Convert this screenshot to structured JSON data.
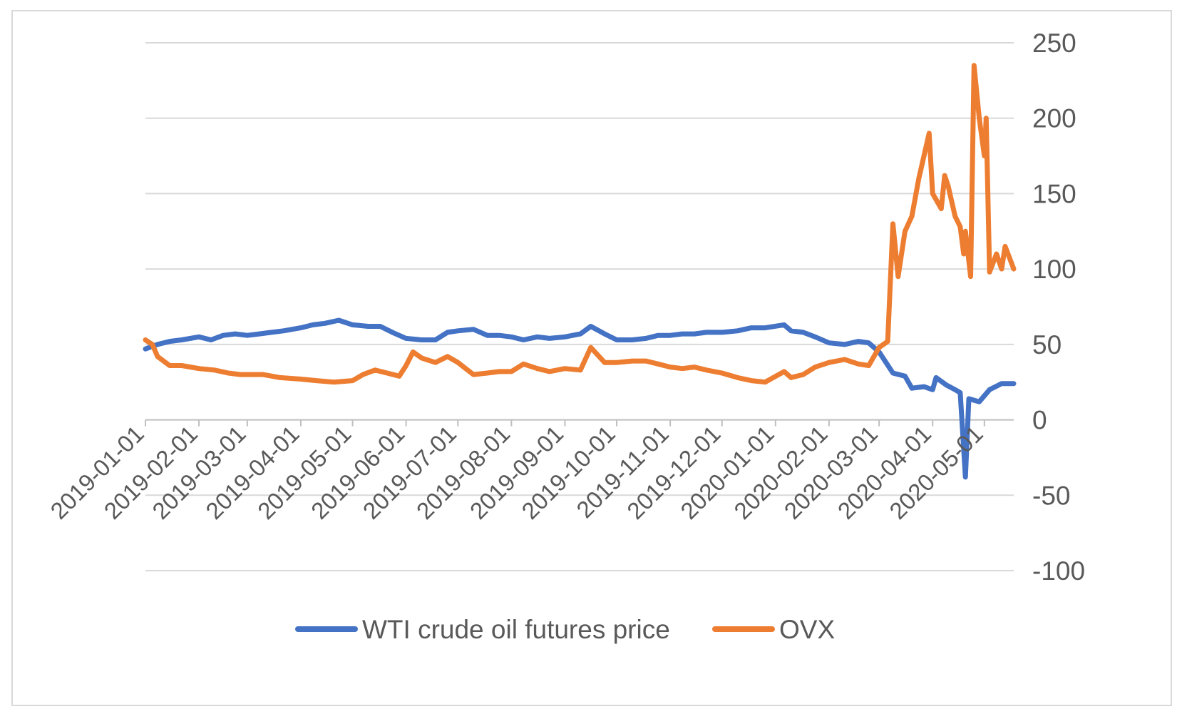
{
  "chart_data": {
    "type": "line",
    "title": "",
    "xlabel": "",
    "ylabel": "",
    "x_range": [
      "2019-01-01",
      "2020-05-18"
    ],
    "ylim": [
      -100,
      250
    ],
    "y_ticks": [
      250,
      200,
      150,
      100,
      50,
      0,
      -50,
      -100
    ],
    "y_axis_side": "right",
    "grid": "horizontal",
    "legend_position": "bottom",
    "x_ticks": [
      "2019-01-01",
      "2019-02-01",
      "2019-03-01",
      "2019-04-01",
      "2019-05-01",
      "2019-06-01",
      "2019-07-01",
      "2019-08-01",
      "2019-09-01",
      "2019-10-01",
      "2019-11-01",
      "2019-12-01",
      "2020-01-01",
      "2020-02-01",
      "2020-03-01",
      "2020-04-01",
      "2020-05-01"
    ],
    "series": [
      {
        "name": "WTI crude oil futures price",
        "color": "#4472c4",
        "points": [
          [
            "2019-01-01",
            47
          ],
          [
            "2019-01-08",
            50
          ],
          [
            "2019-01-15",
            52
          ],
          [
            "2019-01-22",
            53
          ],
          [
            "2019-02-01",
            55
          ],
          [
            "2019-02-08",
            53
          ],
          [
            "2019-02-15",
            56
          ],
          [
            "2019-02-22",
            57
          ],
          [
            "2019-03-01",
            56
          ],
          [
            "2019-03-08",
            57
          ],
          [
            "2019-03-15",
            58
          ],
          [
            "2019-03-22",
            59
          ],
          [
            "2019-04-01",
            61
          ],
          [
            "2019-04-08",
            63
          ],
          [
            "2019-04-15",
            64
          ],
          [
            "2019-04-23",
            66
          ],
          [
            "2019-05-01",
            63
          ],
          [
            "2019-05-10",
            62
          ],
          [
            "2019-05-17",
            62
          ],
          [
            "2019-05-24",
            58
          ],
          [
            "2019-06-01",
            54
          ],
          [
            "2019-06-10",
            53
          ],
          [
            "2019-06-18",
            53
          ],
          [
            "2019-06-25",
            58
          ],
          [
            "2019-07-01",
            59
          ],
          [
            "2019-07-10",
            60
          ],
          [
            "2019-07-18",
            56
          ],
          [
            "2019-07-25",
            56
          ],
          [
            "2019-08-01",
            55
          ],
          [
            "2019-08-08",
            53
          ],
          [
            "2019-08-16",
            55
          ],
          [
            "2019-08-23",
            54
          ],
          [
            "2019-09-01",
            55
          ],
          [
            "2019-09-10",
            57
          ],
          [
            "2019-09-16",
            62
          ],
          [
            "2019-09-24",
            57
          ],
          [
            "2019-10-01",
            53
          ],
          [
            "2019-10-10",
            53
          ],
          [
            "2019-10-18",
            54
          ],
          [
            "2019-10-25",
            56
          ],
          [
            "2019-11-01",
            56
          ],
          [
            "2019-11-08",
            57
          ],
          [
            "2019-11-15",
            57
          ],
          [
            "2019-11-22",
            58
          ],
          [
            "2019-12-01",
            58
          ],
          [
            "2019-12-10",
            59
          ],
          [
            "2019-12-18",
            61
          ],
          [
            "2019-12-26",
            61
          ],
          [
            "2020-01-06",
            63
          ],
          [
            "2020-01-10",
            59
          ],
          [
            "2020-01-17",
            58
          ],
          [
            "2020-01-24",
            55
          ],
          [
            "2020-02-01",
            51
          ],
          [
            "2020-02-10",
            50
          ],
          [
            "2020-02-18",
            52
          ],
          [
            "2020-02-24",
            51
          ],
          [
            "2020-03-01",
            45
          ],
          [
            "2020-03-09",
            31
          ],
          [
            "2020-03-16",
            29
          ],
          [
            "2020-03-20",
            21
          ],
          [
            "2020-03-27",
            22
          ],
          [
            "2020-04-01",
            20
          ],
          [
            "2020-04-03",
            28
          ],
          [
            "2020-04-09",
            23
          ],
          [
            "2020-04-14",
            20
          ],
          [
            "2020-04-17",
            18
          ],
          [
            "2020-04-20",
            -38
          ],
          [
            "2020-04-22",
            14
          ],
          [
            "2020-04-28",
            12
          ],
          [
            "2020-05-04",
            20
          ],
          [
            "2020-05-11",
            24
          ],
          [
            "2020-05-18",
            24
          ]
        ]
      },
      {
        "name": "OVX",
        "color": "#ed7d31",
        "points": [
          [
            "2019-01-01",
            53
          ],
          [
            "2019-01-05",
            50
          ],
          [
            "2019-01-08",
            42
          ],
          [
            "2019-01-15",
            36
          ],
          [
            "2019-01-22",
            36
          ],
          [
            "2019-02-01",
            34
          ],
          [
            "2019-02-10",
            33
          ],
          [
            "2019-02-18",
            31
          ],
          [
            "2019-02-25",
            30
          ],
          [
            "2019-03-01",
            30
          ],
          [
            "2019-03-10",
            30
          ],
          [
            "2019-03-20",
            28
          ],
          [
            "2019-04-01",
            27
          ],
          [
            "2019-04-10",
            26
          ],
          [
            "2019-04-20",
            25
          ],
          [
            "2019-05-01",
            26
          ],
          [
            "2019-05-07",
            30
          ],
          [
            "2019-05-14",
            33
          ],
          [
            "2019-05-21",
            31
          ],
          [
            "2019-05-28",
            29
          ],
          [
            "2019-06-01",
            36
          ],
          [
            "2019-06-05",
            45
          ],
          [
            "2019-06-10",
            41
          ],
          [
            "2019-06-18",
            38
          ],
          [
            "2019-06-25",
            42
          ],
          [
            "2019-07-01",
            38
          ],
          [
            "2019-07-10",
            30
          ],
          [
            "2019-07-18",
            31
          ],
          [
            "2019-07-25",
            32
          ],
          [
            "2019-08-01",
            32
          ],
          [
            "2019-08-08",
            37
          ],
          [
            "2019-08-16",
            34
          ],
          [
            "2019-08-23",
            32
          ],
          [
            "2019-09-01",
            34
          ],
          [
            "2019-09-10",
            33
          ],
          [
            "2019-09-16",
            48
          ],
          [
            "2019-09-24",
            38
          ],
          [
            "2019-10-01",
            38
          ],
          [
            "2019-10-10",
            39
          ],
          [
            "2019-10-18",
            39
          ],
          [
            "2019-10-25",
            37
          ],
          [
            "2019-11-01",
            35
          ],
          [
            "2019-11-08",
            34
          ],
          [
            "2019-11-15",
            35
          ],
          [
            "2019-11-22",
            33
          ],
          [
            "2019-12-01",
            31
          ],
          [
            "2019-12-10",
            28
          ],
          [
            "2019-12-18",
            26
          ],
          [
            "2019-12-26",
            25
          ],
          [
            "2020-01-06",
            32
          ],
          [
            "2020-01-10",
            28
          ],
          [
            "2020-01-17",
            30
          ],
          [
            "2020-01-24",
            35
          ],
          [
            "2020-02-01",
            38
          ],
          [
            "2020-02-10",
            40
          ],
          [
            "2020-02-18",
            37
          ],
          [
            "2020-02-24",
            36
          ],
          [
            "2020-03-01",
            48
          ],
          [
            "2020-03-06",
            52
          ],
          [
            "2020-03-09",
            130
          ],
          [
            "2020-03-12",
            95
          ],
          [
            "2020-03-16",
            125
          ],
          [
            "2020-03-20",
            135
          ],
          [
            "2020-03-24",
            160
          ],
          [
            "2020-03-30",
            190
          ],
          [
            "2020-04-01",
            150
          ],
          [
            "2020-04-06",
            140
          ],
          [
            "2020-04-08",
            162
          ],
          [
            "2020-04-10",
            155
          ],
          [
            "2020-04-14",
            135
          ],
          [
            "2020-04-17",
            128
          ],
          [
            "2020-04-19",
            110
          ],
          [
            "2020-04-20",
            125
          ],
          [
            "2020-04-23",
            95
          ],
          [
            "2020-04-25",
            235
          ],
          [
            "2020-04-28",
            200
          ],
          [
            "2020-05-01",
            175
          ],
          [
            "2020-05-02",
            200
          ],
          [
            "2020-05-04",
            98
          ],
          [
            "2020-05-08",
            110
          ],
          [
            "2020-05-11",
            100
          ],
          [
            "2020-05-13",
            115
          ],
          [
            "2020-05-18",
            100
          ]
        ]
      }
    ]
  }
}
